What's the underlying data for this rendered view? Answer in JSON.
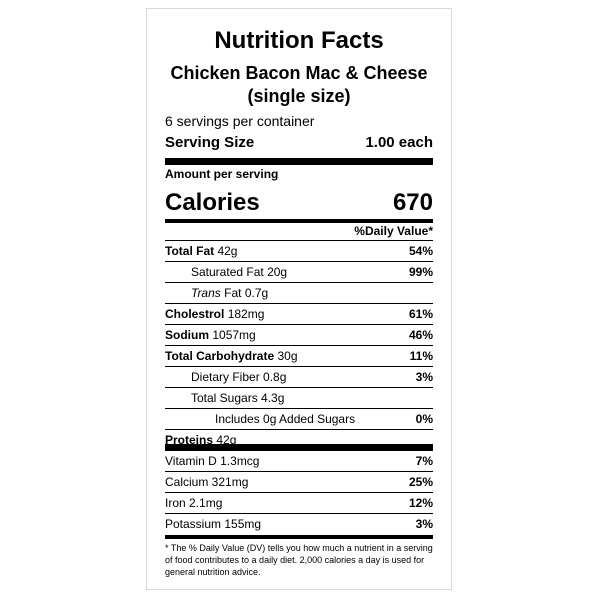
{
  "label": {
    "title": "Nutrition Facts",
    "product_line1": "Chicken Bacon Mac & Cheese",
    "product_line2": "(single size)",
    "servings_per_container": "6 servings per container",
    "serving_size_label": "Serving Size",
    "serving_size_value": "1.00 each",
    "amount_per_serving": "Amount per serving",
    "calories_label": "Calories",
    "calories_value": "670",
    "daily_value_header": "%Daily Value*"
  },
  "nutrients": [
    {
      "name": "Total Fat",
      "amount": "42g",
      "pct": "54%"
    },
    {
      "name": "Saturated Fat",
      "amount": "20g",
      "pct": "99%"
    },
    {
      "name": "Trans",
      "suffix": "Fat 0.7g",
      "pct": ""
    },
    {
      "name": "Cholestrol",
      "amount": "182mg",
      "pct": "61%"
    },
    {
      "name": "Sodium",
      "amount": "1057mg",
      "pct": "46%"
    },
    {
      "name": "Total Carbohydrate",
      "amount": "30g",
      "pct": "11%"
    },
    {
      "name": "Dietary Fiber",
      "amount": "0.8g",
      "pct": "3%"
    },
    {
      "name": "Total Sugars",
      "amount": "4.3g",
      "pct": ""
    },
    {
      "name": "Includes 0g Added Sugars",
      "pct": "0%"
    },
    {
      "name": "Proteins",
      "amount": "42g",
      "pct": ""
    }
  ],
  "vitamins": [
    {
      "name": "Vitamin D 1.3mcg",
      "pct": "7%"
    },
    {
      "name": "Calcium 321mg",
      "pct": "25%"
    },
    {
      "name": "Iron 2.1mg",
      "pct": "12%"
    },
    {
      "name": "Potassium 155mg",
      "pct": "3%"
    }
  ],
  "footnote": "* The % Daily Value (DV) tells you how much a nutrient in a serving of food contributes to a daily diet. 2,000 calories a day is used for general nutrition advice."
}
